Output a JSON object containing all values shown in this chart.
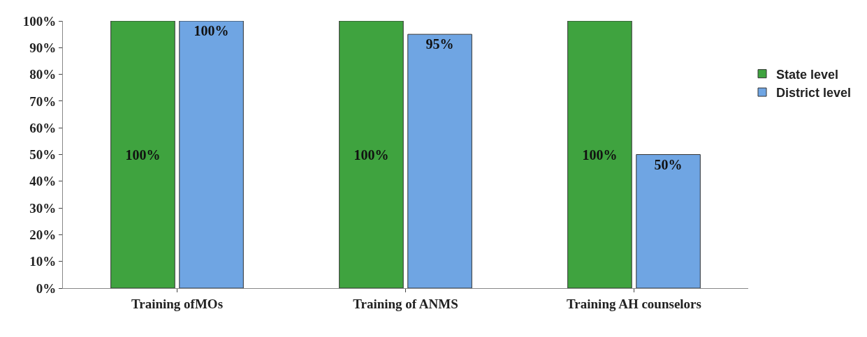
{
  "chart_data": {
    "type": "bar",
    "categories": [
      "Training ofMOs",
      "Training of ANMS",
      "Training AH counselors"
    ],
    "series": [
      {
        "name": "State level",
        "color": "#3fa33f",
        "values": [
          100,
          100,
          100
        ],
        "value_labels": [
          "100%",
          "100%",
          "100%"
        ]
      },
      {
        "name": "District level",
        "color": "#6fa5e3",
        "values": [
          100,
          95,
          50
        ],
        "value_labels": [
          "100%",
          "95%",
          "50%"
        ]
      }
    ],
    "ylim": [
      0,
      100
    ],
    "yticks": [
      {
        "value": 0,
        "label": "0%"
      },
      {
        "value": 10,
        "label": "10%"
      },
      {
        "value": 20,
        "label": "20%"
      },
      {
        "value": 30,
        "label": "30%"
      },
      {
        "value": 40,
        "label": "40%"
      },
      {
        "value": 50,
        "label": "50%"
      },
      {
        "value": 60,
        "label": "60%"
      },
      {
        "value": 70,
        "label": "70%"
      },
      {
        "value": 80,
        "label": "80%"
      },
      {
        "value": 90,
        "label": "90%"
      },
      {
        "value": 100,
        "label": "100%"
      }
    ],
    "legend": "right"
  }
}
